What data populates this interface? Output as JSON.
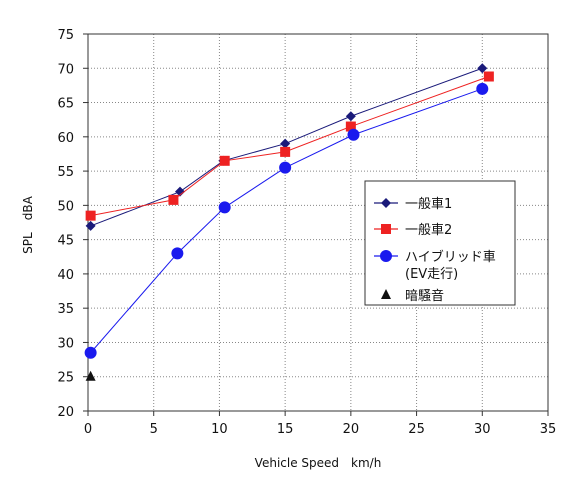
{
  "chart_data": {
    "type": "line",
    "xlabel": "Vehicle Speed　km/h",
    "ylabel": "SPL　dBA",
    "xlim": [
      0,
      35
    ],
    "ylim": [
      20,
      75
    ],
    "xticks": [
      0,
      5,
      10,
      15,
      20,
      25,
      30,
      35
    ],
    "yticks": [
      20,
      25,
      30,
      35,
      40,
      45,
      50,
      55,
      60,
      65,
      70,
      75
    ],
    "grid": true,
    "legend_position": "right",
    "series": [
      {
        "name": "一般車1",
        "color": "#1a1a7a",
        "marker": "diamond",
        "points": [
          [
            0.2,
            47
          ],
          [
            7,
            52
          ],
          [
            10.3,
            56.5
          ],
          [
            15,
            59
          ],
          [
            20,
            63
          ],
          [
            30,
            70
          ]
        ]
      },
      {
        "name": "一般車2",
        "color": "#ee2222",
        "marker": "square",
        "points": [
          [
            0.2,
            48.5
          ],
          [
            6.5,
            50.8
          ],
          [
            10.4,
            56.5
          ],
          [
            15,
            57.8
          ],
          [
            20,
            61.5
          ],
          [
            30.5,
            68.8
          ]
        ]
      },
      {
        "name": "ハイブリッド車",
        "name_line2": "(EV走行)",
        "color": "#1a1aee",
        "marker": "circle",
        "points": [
          [
            0.2,
            28.5
          ],
          [
            6.8,
            43
          ],
          [
            10.4,
            49.7
          ],
          [
            15,
            55.5
          ],
          [
            20.2,
            60.3
          ],
          [
            30,
            67
          ]
        ]
      },
      {
        "name": "暗騒音",
        "color": "#111111",
        "marker": "triangle",
        "points": [
          [
            0.2,
            25
          ]
        ]
      }
    ]
  }
}
